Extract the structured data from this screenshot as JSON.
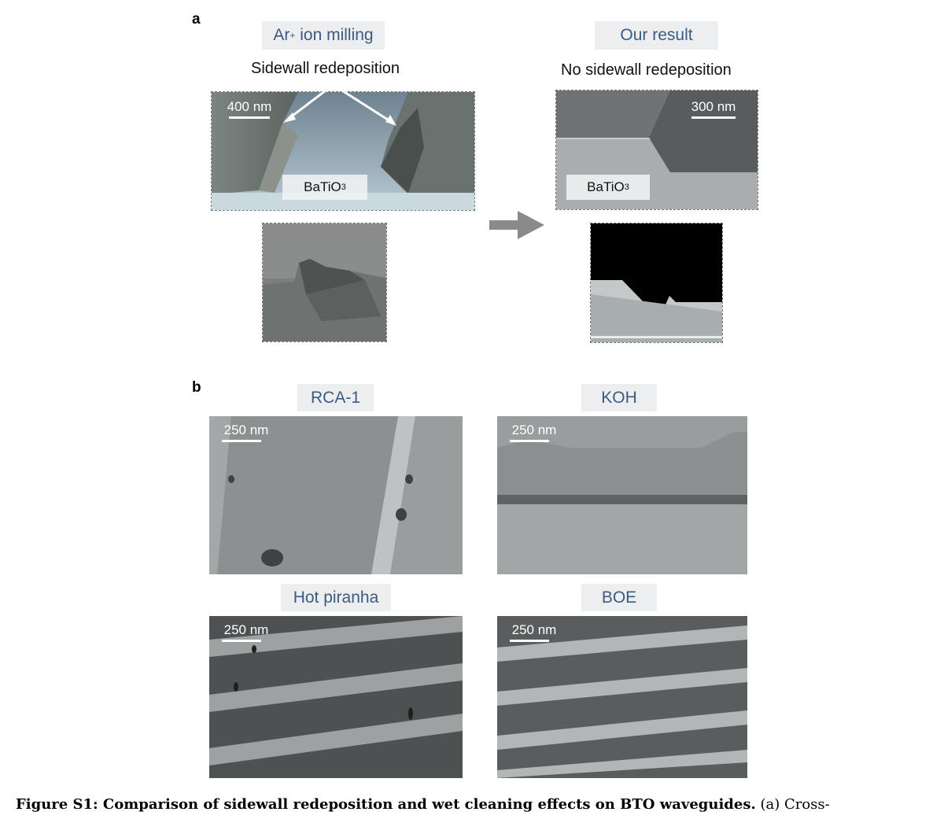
{
  "panel_a": {
    "letter": "a",
    "left": {
      "tag_base": "Ar",
      "tag_sup": "+",
      "tag_rest": " ion milling",
      "subtitle": "Sidewall redeposition",
      "scale": "400 nm",
      "material_base": "BaTiO",
      "material_sub": "3"
    },
    "right": {
      "tag": "Our result",
      "subtitle": "No sidewall redeposition",
      "scale": "300 nm",
      "material_base": "BaTiO",
      "material_sub": "3"
    }
  },
  "panel_b": {
    "letter": "b",
    "items": [
      {
        "tag": "RCA-1",
        "scale": "250 nm"
      },
      {
        "tag": "KOH",
        "scale": "250 nm"
      },
      {
        "tag": "Hot piranha",
        "scale": "250 nm"
      },
      {
        "tag": "BOE",
        "scale": "250 nm"
      }
    ]
  },
  "caption": {
    "bold": "Figure S1: Comparison of sidewall redeposition and wet cleaning effects on BTO waveguides.",
    "rest": " (a) Cross-"
  },
  "colors": {
    "tag_text": "#3d5a80",
    "tag_bg": "#eceef0",
    "arrow": "#8a8a8a"
  },
  "icons": {
    "process_arrow": "right-arrow-icon",
    "pointer_arrows": "pointer-arrow-icon"
  }
}
